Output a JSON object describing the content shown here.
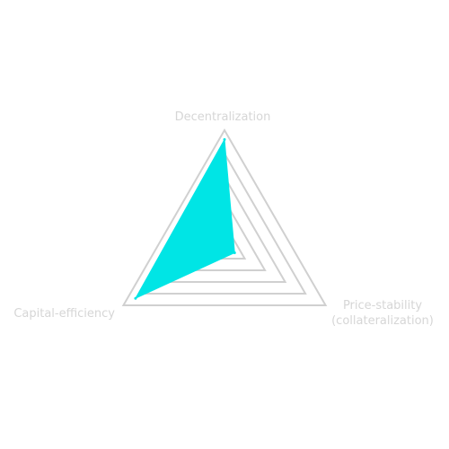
{
  "chart_data": {
    "type": "radar",
    "axes": [
      {
        "label_lines": [
          "Decentralization"
        ]
      },
      {
        "label_lines": [
          "Price-stability",
          "(collateralization)"
        ]
      },
      {
        "label_lines": [
          "Capital-efficiency"
        ]
      }
    ],
    "range": [
      0,
      1
    ],
    "rings": [
      0.2,
      0.4,
      0.6,
      0.8,
      1.0
    ],
    "series": [
      {
        "values": [
          0.92,
          0.1,
          0.88
        ],
        "color": "#00e5e5"
      }
    ],
    "grid": true,
    "legend": "none"
  }
}
